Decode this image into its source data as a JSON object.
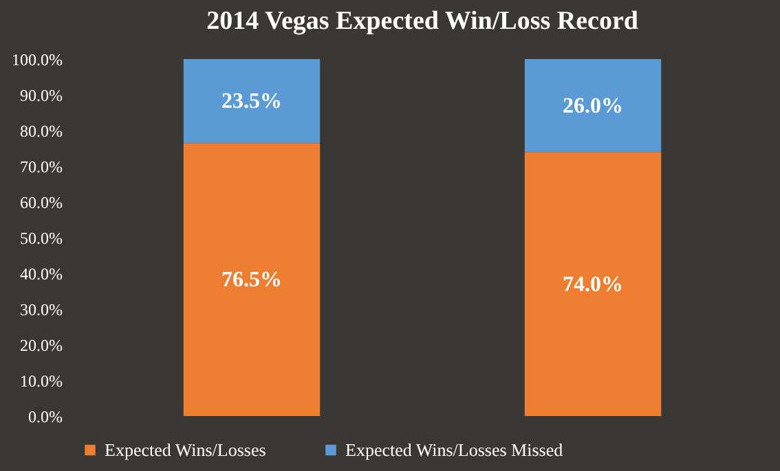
{
  "chart_data": {
    "type": "bar",
    "title": "2014 Vegas Expected Win/Loss Record",
    "categories": [
      null,
      null
    ],
    "stacked": true,
    "tick_labels": "y",
    "legend": "bottom",
    "ylim": [
      0,
      100
    ],
    "yticks": [
      {
        "value": 0,
        "label": "0.0%"
      },
      {
        "value": 10,
        "label": "10.0%"
      },
      {
        "value": 20,
        "label": "20.0%"
      },
      {
        "value": 30,
        "label": "30.0%"
      },
      {
        "value": 40,
        "label": "40.0%"
      },
      {
        "value": 50,
        "label": "50.0%"
      },
      {
        "value": 60,
        "label": "60.0%"
      },
      {
        "value": 70,
        "label": "70.0%"
      },
      {
        "value": 80,
        "label": "80.0%"
      },
      {
        "value": 90,
        "label": "90.0%"
      },
      {
        "value": 100,
        "label": "100.0%"
      }
    ],
    "series": [
      {
        "name": "Expected Wins/Losses",
        "color": "#ed7d31",
        "values": [
          76.5,
          74.0
        ],
        "value_labels": [
          "76.5%",
          "74.0%"
        ]
      },
      {
        "name": "Expected Wins/Losses Missed",
        "color": "#5b9bd5",
        "values": [
          23.5,
          26.0
        ],
        "value_labels": [
          "23.5%",
          "26.0%"
        ]
      }
    ]
  }
}
